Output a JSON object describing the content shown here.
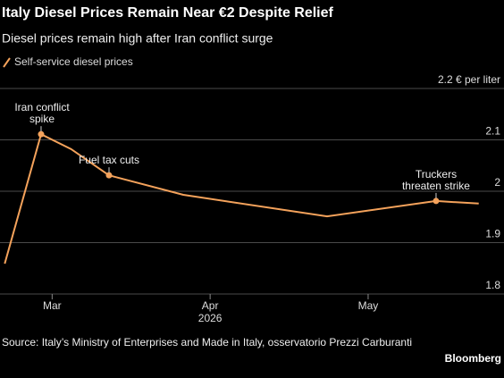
{
  "chart_data": {
    "type": "line",
    "title": "Italy Diesel Prices Remain Near €2 Despite Relief",
    "subtitle": "Diesel prices remain high after Iran conflict surge",
    "x": [
      2.7,
      2.93,
      3.12,
      3.36,
      3.83,
      4.74,
      5.43,
      5.7
    ],
    "series": [
      {
        "name": "Self-service diesel prices",
        "color": "#f4a25b",
        "values": [
          1.859,
          2.111,
          2.082,
          2.031,
          1.993,
          1.951,
          1.981,
          1.976
        ],
        "point_labels": [
          null,
          "Iran conflict spike",
          null,
          "Fuel tax cuts",
          null,
          null,
          "Truckers threaten strike",
          null
        ]
      }
    ],
    "xlim": [
      2.67,
      5.86
    ],
    "xticks": [
      {
        "value": 3,
        "label": "Mar"
      },
      {
        "value": 4,
        "label": "Apr"
      },
      {
        "value": 5,
        "label": "May"
      }
    ],
    "xlabel": "2026",
    "ylim": [
      1.8,
      2.2
    ],
    "yticks": [
      1.8,
      1.9,
      2.0,
      2.1,
      {
        "value": 2.2,
        "label": "2.2 € per liter"
      }
    ],
    "grid": true,
    "source": "Source: Italy’s Ministry of Enterprises and Made in Italy, osservatorio Prezzi Carburanti",
    "brand": "Bloomberg"
  }
}
